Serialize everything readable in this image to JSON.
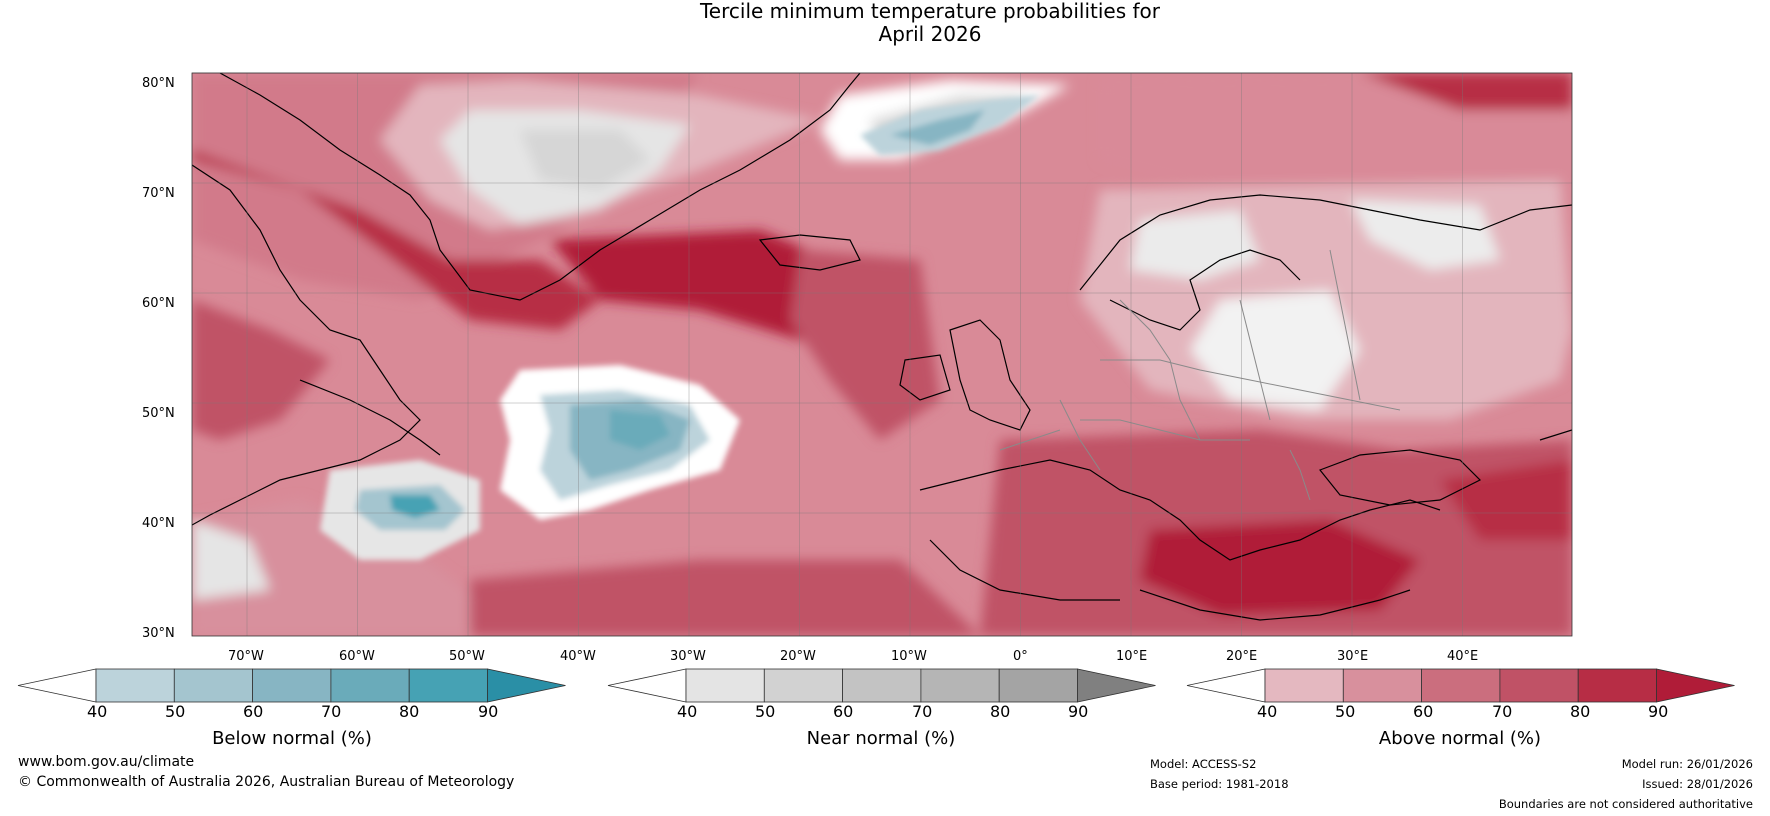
{
  "title": {
    "line1": "Tercile minimum temperature probabilities for",
    "line2": "April 2026"
  },
  "map": {
    "lat_labels": [
      "80°N",
      "70°N",
      "60°N",
      "50°N",
      "40°N",
      "30°N"
    ],
    "lon_labels": [
      "70°W",
      "60°W",
      "50°W",
      "40°W",
      "30°W",
      "20°W",
      "10°W",
      "0°",
      "10°E",
      "20°E",
      "30°E",
      "40°E"
    ],
    "colors": {
      "ocean_base": "#c95668",
      "land_base": "#d98a97",
      "coast": "#000000",
      "borders": "#8a8a8a",
      "grid": "#777777"
    }
  },
  "colorbars": [
    {
      "label": "Below normal (%)",
      "ticks": [
        "40",
        "50",
        "60",
        "70",
        "80",
        "90"
      ],
      "colors": [
        "#ffffff",
        "#bcd3db",
        "#a4c5cf",
        "#87b5c3",
        "#6aabba",
        "#46a2b4",
        "#2a8fa6"
      ]
    },
    {
      "label": "Near normal (%)",
      "ticks": [
        "40",
        "50",
        "60",
        "70",
        "80",
        "90"
      ],
      "colors": [
        "#ffffff",
        "#e4e4e4",
        "#d2d2d2",
        "#c3c3c3",
        "#b5b5b5",
        "#a4a4a4",
        "#808080"
      ]
    },
    {
      "label": "Above normal (%)",
      "ticks": [
        "40",
        "50",
        "60",
        "70",
        "80",
        "90"
      ],
      "colors": [
        "#ffffff",
        "#e4b8c0",
        "#d8909d",
        "#cb6e7e",
        "#c05266",
        "#b72d45",
        "#b01c38"
      ]
    }
  ],
  "footer": {
    "url": "www.bom.gov.au/climate",
    "copyright": "© Commonwealth of Australia 2026, Australian Bureau of Meteorology",
    "model": "Model: ACCESS-S2",
    "base_period": "Base period: 1981-2018",
    "model_run": "Model run: 26/01/2026",
    "issued": "Issued: 28/01/2026",
    "disclaimer": "Boundaries are not considered authoritative"
  }
}
